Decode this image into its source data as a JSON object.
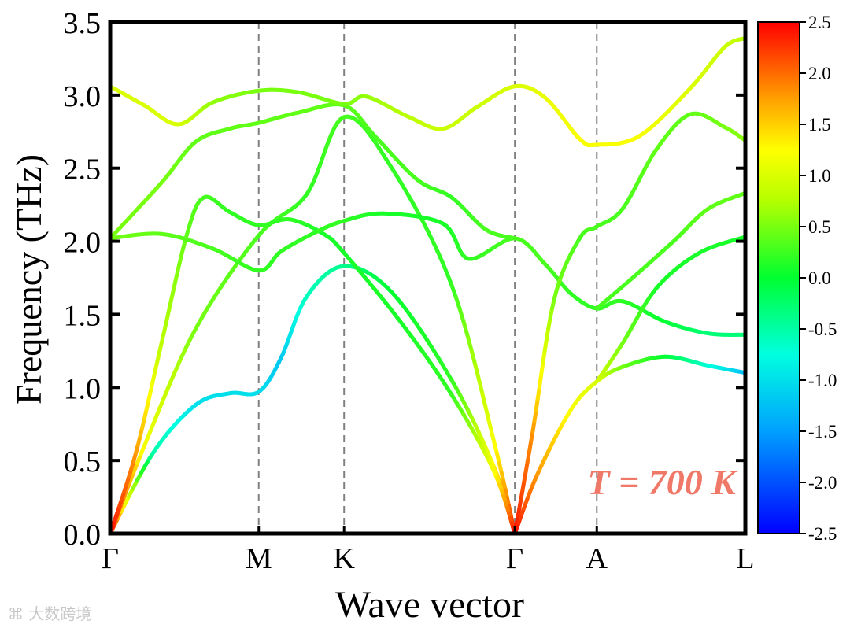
{
  "chart_data": {
    "type": "line",
    "title": "",
    "xlabel": "Wave vector",
    "ylabel": "Frequency (THz)",
    "ylim": [
      0,
      3.5
    ],
    "yticks": [
      0.0,
      0.5,
      1.0,
      1.5,
      2.0,
      2.5,
      3.0,
      3.5
    ],
    "ytick_labels": [
      "0.0",
      "0.5",
      "1.0",
      "1.5",
      "2.0",
      "2.5",
      "3.0",
      "3.5"
    ],
    "xlim": [
      0,
      7.44
    ],
    "x_points": [
      {
        "label": "Γ",
        "x": 0.0
      },
      {
        "label": "M",
        "x": 1.74
      },
      {
        "label": "K",
        "x": 2.74
      },
      {
        "label": "Γ",
        "x": 4.74
      },
      {
        "label": "A",
        "x": 5.7
      },
      {
        "label": "L",
        "x": 7.44
      }
    ],
    "colorbar": {
      "min": -2.5,
      "max": 2.5,
      "ticks": [
        2.5,
        2.0,
        1.5,
        1.0,
        0.5,
        0.0,
        -0.5,
        -1.0,
        -1.5,
        -2.0,
        -2.5
      ],
      "tick_labels": [
        "2.5",
        "2.0",
        "1.5",
        "1.0",
        "0.5",
        "0.0",
        "-0.5",
        "-1.0",
        "-1.5",
        "-2.0",
        "-2.5"
      ],
      "colormap": "rainbow"
    },
    "annotation": {
      "text": "T = 700 K",
      "color": "#f07868",
      "position": "bottom-right"
    },
    "series": [
      {
        "name": "band-1",
        "points": [
          [
            0,
            0,
            2.5
          ],
          [
            0.5,
            0.55,
            -0.5
          ],
          [
            1.0,
            0.88,
            -1.0
          ],
          [
            1.4,
            0.96,
            -1.0
          ],
          [
            1.74,
            0.97,
            -1.0
          ],
          [
            2.0,
            1.2,
            -1.2
          ],
          [
            2.3,
            1.62,
            -0.6
          ],
          [
            2.74,
            1.83,
            -0.4
          ],
          [
            3.3,
            1.65,
            0.0
          ],
          [
            4.0,
            1.05,
            0.2
          ],
          [
            4.5,
            0.45,
            1.3
          ],
          [
            4.74,
            0,
            2.5
          ]
        ]
      },
      {
        "name": "band-2",
        "points": [
          [
            0,
            0,
            2.5
          ],
          [
            0.4,
            0.6,
            1.2
          ],
          [
            1.0,
            1.4,
            0.5
          ],
          [
            1.74,
            2.04,
            0.3
          ],
          [
            2.3,
            2.32,
            0.2
          ],
          [
            2.74,
            2.85,
            0.3
          ],
          [
            3.3,
            2.5,
            0.2
          ],
          [
            4.0,
            1.7,
            0.2
          ],
          [
            4.5,
            0.62,
            1.2
          ],
          [
            4.74,
            0,
            2.5
          ]
        ]
      },
      {
        "name": "band-3",
        "points": [
          [
            0,
            0,
            2.5
          ],
          [
            0.3,
            0.55,
            1.8
          ],
          [
            0.6,
            1.3,
            0.8
          ],
          [
            0.9,
            2.05,
            0.4
          ],
          [
            1.1,
            2.3,
            0.3
          ],
          [
            1.4,
            2.2,
            0.2
          ],
          [
            1.74,
            2.11,
            0.2
          ],
          [
            2.1,
            2.15,
            0.2
          ],
          [
            2.5,
            2.05,
            0.1
          ],
          [
            2.74,
            1.92,
            0.1
          ],
          [
            3.4,
            1.45,
            0.1
          ],
          [
            4.0,
            0.95,
            0.2
          ],
          [
            4.5,
            0.42,
            1.2
          ],
          [
            4.74,
            0,
            2.5
          ]
        ]
      },
      {
        "name": "band-4",
        "points": [
          [
            0,
            2.02,
            0.5
          ],
          [
            0.6,
            2.05,
            0.4
          ],
          [
            1.2,
            1.95,
            0.3
          ],
          [
            1.74,
            1.8,
            0.2
          ],
          [
            2.0,
            1.93,
            0.2
          ],
          [
            2.4,
            2.06,
            0.2
          ],
          [
            2.74,
            2.14,
            0.2
          ],
          [
            3.2,
            2.19,
            0.1
          ],
          [
            3.9,
            2.12,
            0.1
          ],
          [
            4.2,
            1.88,
            0.2
          ],
          [
            4.74,
            2.02,
            0.3
          ],
          [
            5.1,
            1.84,
            0.3
          ],
          [
            5.4,
            1.64,
            0.2
          ],
          [
            5.7,
            1.54,
            0.2
          ],
          [
            6.0,
            1.59,
            0.2
          ],
          [
            6.5,
            1.45,
            0.0
          ],
          [
            7.0,
            1.37,
            -0.3
          ],
          [
            7.44,
            1.36,
            -0.3
          ]
        ]
      },
      {
        "name": "band-5",
        "points": [
          [
            0,
            2.02,
            0.5
          ],
          [
            0.6,
            2.4,
            0.5
          ],
          [
            1.0,
            2.68,
            0.4
          ],
          [
            1.4,
            2.77,
            0.4
          ],
          [
            1.74,
            2.81,
            0.4
          ],
          [
            2.2,
            2.88,
            0.4
          ],
          [
            2.74,
            2.93,
            0.4
          ],
          [
            3.1,
            2.72,
            0.3
          ],
          [
            3.6,
            2.42,
            0.3
          ],
          [
            4.0,
            2.3,
            0.2
          ],
          [
            4.4,
            2.08,
            0.3
          ],
          [
            4.74,
            2.02,
            0.3
          ]
        ]
      },
      {
        "name": "band-6",
        "points": [
          [
            0,
            3.06,
            1.0
          ],
          [
            0.4,
            2.93,
            1.0
          ],
          [
            0.8,
            2.8,
            1.0
          ],
          [
            1.2,
            2.95,
            0.6
          ],
          [
            1.74,
            3.03,
            0.5
          ],
          [
            2.2,
            3.02,
            0.5
          ],
          [
            2.74,
            2.94,
            0.5
          ],
          [
            3.0,
            2.99,
            0.6
          ],
          [
            3.5,
            2.85,
            0.8
          ],
          [
            3.9,
            2.77,
            0.9
          ],
          [
            4.3,
            2.92,
            0.9
          ],
          [
            4.74,
            3.06,
            1.0
          ],
          [
            5.1,
            2.98,
            1.1
          ],
          [
            5.5,
            2.7,
            1.2
          ],
          [
            5.7,
            2.66,
            1.2
          ],
          [
            6.2,
            2.72,
            1.2
          ],
          [
            6.8,
            3.05,
            1.0
          ],
          [
            7.2,
            3.33,
            0.9
          ],
          [
            7.44,
            3.39,
            0.8
          ]
        ]
      },
      {
        "name": "band-7",
        "points": [
          [
            4.74,
            0,
            2.5
          ],
          [
            4.95,
            0.7,
            1.8
          ],
          [
            5.2,
            1.6,
            0.5
          ],
          [
            5.5,
            2.02,
            0.3
          ],
          [
            5.7,
            2.1,
            0.3
          ],
          [
            6.0,
            2.22,
            0.3
          ],
          [
            6.4,
            2.63,
            0.4
          ],
          [
            6.8,
            2.87,
            0.4
          ],
          [
            7.2,
            2.78,
            0.5
          ],
          [
            7.44,
            2.69,
            0.6
          ]
        ]
      },
      {
        "name": "band-8",
        "points": [
          [
            4.74,
            0,
            2.5
          ],
          [
            5.0,
            0.4,
            1.8
          ],
          [
            5.4,
            0.85,
            1.2
          ],
          [
            5.7,
            1.04,
            1.0
          ],
          [
            6.0,
            1.14,
            0.5
          ],
          [
            6.5,
            1.21,
            0.0
          ],
          [
            7.0,
            1.15,
            -0.7
          ],
          [
            7.44,
            1.1,
            -1.3
          ]
        ]
      },
      {
        "name": "band-9",
        "points": [
          [
            5.7,
            1.04,
            1.0
          ],
          [
            6.0,
            1.3,
            0.5
          ],
          [
            6.4,
            1.68,
            0.1
          ],
          [
            6.9,
            1.92,
            0.1
          ],
          [
            7.44,
            2.03,
            0.1
          ]
        ]
      },
      {
        "name": "band-10",
        "points": [
          [
            5.7,
            1.54,
            0.3
          ],
          [
            6.1,
            1.74,
            0.3
          ],
          [
            6.6,
            2.0,
            0.3
          ],
          [
            7.0,
            2.22,
            0.4
          ],
          [
            7.44,
            2.33,
            0.4
          ]
        ]
      }
    ]
  },
  "watermark": "⌘ 大数跨境"
}
